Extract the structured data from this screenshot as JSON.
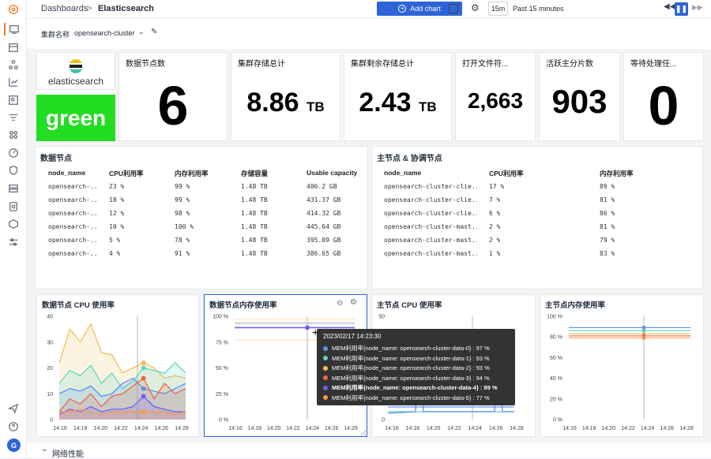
{
  "breadcrumb": {
    "root": "Dashboards",
    "separator": ">",
    "current": "Elasticsearch"
  },
  "toolbar": {
    "add_chart": "Add chart",
    "interval": "15m",
    "time_range": "Past 15 minutes"
  },
  "filter": {
    "label": "集群名称",
    "value": "opensearch-cluster"
  },
  "brand": {
    "name": "elasticsearch",
    "status": "green",
    "status_color": "#22dd22"
  },
  "stats": [
    {
      "title": "数据节点数",
      "value": "6",
      "unit": ""
    },
    {
      "title": "集群存储总计",
      "value": "8.86",
      "unit": "TB"
    },
    {
      "title": "集群剩余存储总计",
      "value": "2.43",
      "unit": "TB"
    },
    {
      "title": "打开文件符...",
      "value": "2,663",
      "unit": ""
    },
    {
      "title": "活跃主分片数",
      "value": "903",
      "unit": ""
    },
    {
      "title": "等待处理任...",
      "value": "0",
      "unit": ""
    }
  ],
  "data_nodes": {
    "title": "数据节点",
    "headers": [
      "node_name",
      "CPU利用率",
      "内存利用率",
      "存储容量",
      "Usable capacity"
    ],
    "rows": [
      [
        "opensearch-...",
        "23 %",
        "99 %",
        "1.48 TB",
        "406.2 GB"
      ],
      [
        "opensearch-...",
        "18 %",
        "99 %",
        "1.48 TB",
        "431.37 GB"
      ],
      [
        "opensearch-...",
        "12 %",
        "98 %",
        "1.48 TB",
        "414.32 GB"
      ],
      [
        "opensearch-...",
        "10 %",
        "100 %",
        "1.48 TB",
        "445.64 GB"
      ],
      [
        "opensearch-...",
        "5 %",
        "78 %",
        "1.48 TB",
        "395.09 GB"
      ],
      [
        "opensearch-...",
        "4 %",
        "91 %",
        "1.48 TB",
        "386.65 GB"
      ]
    ]
  },
  "master_nodes": {
    "title": "主节点 & 协调节点",
    "headers": [
      "node_name",
      "CPU利用率",
      "内存利用率"
    ],
    "rows": [
      [
        "opensearch-cluster-clie...",
        "17 %",
        "89 %"
      ],
      [
        "opensearch-cluster-clie...",
        "7 %",
        "81 %"
      ],
      [
        "opensearch-cluster-clie...",
        "6 %",
        "86 %"
      ],
      [
        "opensearch-cluster-mast...",
        "2 %",
        "81 %"
      ],
      [
        "opensearch-cluster-mast...",
        "2 %",
        "79 %"
      ],
      [
        "opensearch-cluster-mast...",
        "1 %",
        "83 %"
      ]
    ]
  },
  "charts": {
    "x_ticks": [
      "14:16",
      "14:18",
      "14:20",
      "14:22",
      "14:24",
      "14:26",
      "14:28"
    ],
    "cpu_data": {
      "title": "数据节点 CPU 使用率",
      "y_ticks": [
        "40",
        "30",
        "20",
        "10",
        "0"
      ]
    },
    "mem_data": {
      "title": "数据节点内存使用率",
      "y_ticks": [
        "100 %",
        "75 %",
        "50 %",
        "25 %",
        "0 %"
      ]
    },
    "cpu_master": {
      "title": "主节点 CPU 使用率",
      "y_ticks": [
        "50",
        "40",
        "30",
        "20",
        "10",
        "0"
      ]
    },
    "mem_master": {
      "title": "主节点内存使用率",
      "y_ticks": [
        "100 %",
        "80 %",
        "60 %",
        "40 %",
        "20 %",
        "0 %"
      ]
    }
  },
  "chart_data": [
    {
      "type": "area",
      "title": "数据节点 CPU 使用率",
      "ylim": [
        0,
        40
      ],
      "x": [
        "14:16",
        "14:17",
        "14:18",
        "14:19",
        "14:20",
        "14:21",
        "14:22",
        "14:23",
        "14:24",
        "14:25",
        "14:26",
        "14:27",
        "14:28"
      ],
      "series": [
        {
          "values": [
            22,
            35,
            30,
            37,
            26,
            25,
            18,
            20,
            22,
            20,
            16,
            17,
            16
          ]
        },
        {
          "values": [
            14,
            19,
            17,
            21,
            14,
            18,
            12,
            15,
            20,
            19,
            18,
            22,
            18
          ]
        },
        {
          "values": [
            10,
            12,
            11,
            13,
            9,
            10,
            14,
            16,
            12,
            11,
            10,
            12,
            14
          ]
        },
        {
          "values": [
            3,
            8,
            6,
            10,
            5,
            9,
            10,
            13,
            16,
            8,
            14,
            10,
            12
          ]
        },
        {
          "values": [
            2,
            4,
            3,
            5,
            3,
            4,
            4,
            5,
            9,
            5,
            4,
            3,
            3
          ]
        },
        {
          "values": [
            3,
            3,
            4,
            3,
            2,
            3,
            3,
            3,
            3,
            3,
            3,
            2,
            3
          ]
        }
      ]
    },
    {
      "type": "line",
      "title": "数据节点内存使用率",
      "ylim": [
        0,
        100
      ],
      "x": [
        "14:16",
        "14:20",
        "14:24",
        "14:28"
      ],
      "series": [
        {
          "name": "MEM利用率{node_name: opensearch-cluster-data-0}",
          "values": [
            97,
            97,
            97,
            97
          ]
        },
        {
          "name": "MEM利用率{node_name: opensearch-cluster-data-1}",
          "values": [
            93,
            93,
            93,
            93
          ]
        },
        {
          "name": "MEM利用率{node_name: opensearch-cluster-data-2}",
          "values": [
            93,
            93,
            93,
            93
          ]
        },
        {
          "name": "MEM利用率{node_name: opensearch-cluster-data-3}",
          "values": [
            94,
            94,
            94,
            94
          ]
        },
        {
          "name": "MEM利用率{node_name: opensearch-cluster-data-4}",
          "values": [
            89,
            89,
            89,
            89
          ]
        },
        {
          "name": "MEM利用率{node_name: opensearch-cluster-data-5}",
          "values": [
            77,
            77,
            77,
            77
          ]
        }
      ]
    },
    {
      "type": "line",
      "title": "主节点 CPU 使用率",
      "ylim": [
        0,
        50
      ]
    },
    {
      "type": "line",
      "title": "主节点内存使用率",
      "ylim": [
        0,
        100
      ],
      "x": [
        "14:16",
        "14:28"
      ],
      "series": [
        {
          "values": [
            89,
            89
          ]
        },
        {
          "values": [
            86,
            86
          ]
        },
        {
          "values": [
            83,
            83
          ]
        },
        {
          "values": [
            81,
            81
          ]
        },
        {
          "values": [
            79,
            79
          ]
        }
      ]
    }
  ],
  "tooltip": {
    "time": "2023/02/17 14:23:30",
    "rows": [
      {
        "text": "MEM利用率{node_name: opensearch-cluster-data-0} : 97 %",
        "color": "#5b8ff9",
        "bold": false
      },
      {
        "text": "MEM利用率{node_name: opensearch-cluster-data-1} : 93 %",
        "color": "#5ad8c6",
        "bold": false
      },
      {
        "text": "MEM利用率{node_name: opensearch-cluster-data-2} : 93 %",
        "color": "#f6bd59",
        "bold": false
      },
      {
        "text": "MEM利用率{node_name: opensearch-cluster-data-3} : 94 %",
        "color": "#e8684a",
        "bold": false
      },
      {
        "text": "MEM利用率{node_name: opensearch-cluster-data-4} : 89 %",
        "color": "#6f5ef9",
        "bold": true
      },
      {
        "text": "MEM利用率{node_name: opensearch-cluster-data-5} : 77 %",
        "color": "#ff9845",
        "bold": false
      }
    ]
  },
  "section": {
    "title": "网络性能"
  },
  "user": {
    "initial": "G"
  },
  "colors": {
    "primary": "#2d64d6"
  }
}
